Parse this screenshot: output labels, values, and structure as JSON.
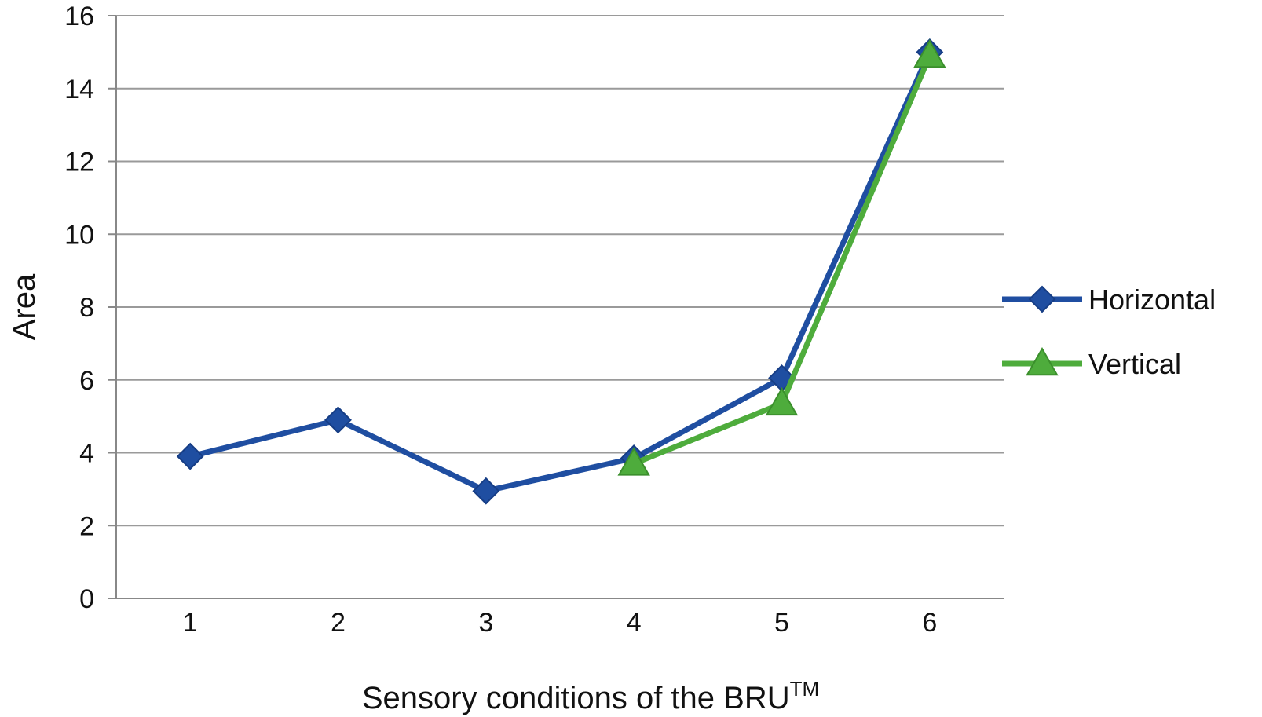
{
  "chart_data": {
    "type": "line",
    "title": "",
    "xlabel": "Sensory conditions of the BRU",
    "xlabel_superscript": "TM",
    "ylabel": "Area",
    "categories": [
      "1",
      "2",
      "3",
      "4",
      "5",
      "6"
    ],
    "ylim": [
      0,
      16
    ],
    "yticks": [
      "0",
      "2",
      "4",
      "6",
      "8",
      "10",
      "12",
      "14",
      "16"
    ],
    "grid": "horizontal",
    "legend_position": "right",
    "series": [
      {
        "name": "Horizontal",
        "values": [
          3.9,
          4.9,
          2.95,
          3.85,
          6.05,
          15.0
        ],
        "color": "#1f4ea1",
        "marker": "diamond"
      },
      {
        "name": "Vertical",
        "values": [
          null,
          null,
          null,
          3.7,
          5.35,
          14.9
        ],
        "color": "#4eac3c",
        "marker": "triangle"
      }
    ]
  }
}
